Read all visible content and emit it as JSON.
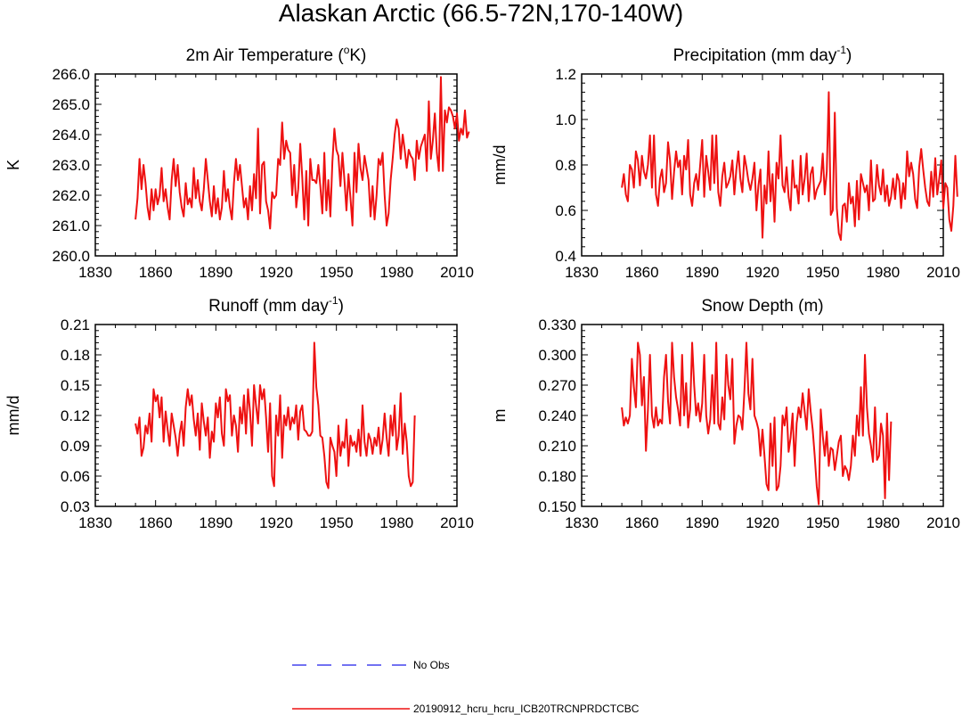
{
  "figure": {
    "title": "Alaskan Arctic (66.5-72N,170-140W)"
  },
  "legend": {
    "items": [
      {
        "label": "No Obs",
        "color": "#4444ee",
        "style": "dashed"
      },
      {
        "label": "20190912_hcru_hcru_ICB20TRCNPRDCTCBC",
        "color": "#ee1111",
        "style": "solid"
      }
    ]
  },
  "colors": {
    "series": "#ee1111",
    "axis": "#000000"
  },
  "chart_data": [
    {
      "type": "line",
      "title_main": "2m Air Temperature (",
      "title_sup": "o",
      "title_tail": "K)",
      "ylabel": "K",
      "xlim": [
        1830,
        2010
      ],
      "ylim": [
        260.0,
        266.0
      ],
      "x_ticks": [
        1830,
        1860,
        1890,
        1920,
        1950,
        1980,
        2010
      ],
      "y_ticks": [
        "260.0",
        "261.0",
        "262.0",
        "263.0",
        "264.0",
        "265.0",
        "266.0"
      ],
      "x_start": 1850,
      "series": [
        {
          "name": "20190912_hcru_hcru_ICB20TRCNPRDCTCBC",
          "values": [
            261.2,
            261.9,
            263.2,
            262.2,
            263.0,
            262.4,
            261.6,
            261.2,
            262.2,
            261.5,
            262.2,
            261.7,
            262.0,
            262.9,
            261.8,
            262.2,
            261.6,
            261.2,
            262.5,
            263.2,
            262.3,
            263.0,
            262.1,
            261.6,
            261.3,
            262.4,
            261.7,
            261.9,
            261.6,
            262.9,
            261.9,
            262.5,
            261.8,
            261.5,
            262.2,
            263.2,
            262.5,
            261.8,
            261.3,
            262.3,
            261.4,
            261.9,
            261.2,
            261.6,
            262.8,
            261.8,
            262.2,
            261.6,
            261.2,
            262.4,
            263.2,
            262.5,
            263.0,
            262.3,
            261.6,
            261.9,
            261.2,
            262.3,
            261.5,
            262.7,
            261.9,
            264.2,
            261.4,
            263.0,
            263.1,
            261.8,
            261.5,
            260.9,
            262.1,
            261.9,
            262.0,
            263.2,
            263.0,
            264.4,
            263.2,
            263.8,
            263.5,
            263.4,
            262.0,
            263.0,
            261.6,
            262.2,
            263.7,
            262.6,
            261.2,
            262.8,
            261.0,
            263.2,
            262.5,
            262.5,
            262.4,
            263.0,
            262.3,
            261.4,
            263.4,
            261.5,
            262.5,
            261.3,
            263.1,
            264.2,
            263.5,
            263.3,
            262.3,
            263.4,
            262.5,
            261.5,
            262.7,
            261.9,
            261.0,
            263.4,
            262.1,
            263.7,
            262.9,
            262.5,
            263.3,
            262.9,
            262.5,
            261.3,
            262.3,
            261.2,
            262.0,
            263.2,
            263.0,
            263.4,
            262.0,
            261.0,
            261.4,
            262.5,
            263.2,
            264.0,
            264.5,
            264.2,
            263.2,
            264.0,
            263.5,
            262.9,
            263.5,
            263.3,
            263.2,
            262.5,
            263.8,
            263.2,
            263.6,
            263.8,
            264.0,
            262.8,
            265.1,
            263.2,
            263.8,
            264.7,
            263.4,
            262.8,
            265.9,
            262.8,
            264.8,
            264.4,
            264.9,
            264.8,
            264.6,
            264.2,
            264.7,
            263.8,
            264.2,
            264.0,
            264.8,
            263.9,
            264.1
          ]
        }
      ]
    },
    {
      "type": "line",
      "title_main": "Precipitation (mm day",
      "title_sup": "-1",
      "title_tail": ")",
      "ylabel": "mm/d",
      "xlim": [
        1830,
        2010
      ],
      "ylim": [
        0.4,
        1.2
      ],
      "x_ticks": [
        1830,
        1860,
        1890,
        1920,
        1950,
        1980,
        2010
      ],
      "y_ticks": [
        "0.4",
        "0.6",
        "0.8",
        "1.0",
        "1.2"
      ],
      "x_start": 1850,
      "series": [
        {
          "name": "20190912_hcru_hcru_ICB20TRCNPRDCTCBC",
          "values": [
            0.7,
            0.76,
            0.67,
            0.64,
            0.8,
            0.78,
            0.7,
            0.86,
            0.82,
            0.71,
            0.84,
            0.77,
            0.74,
            0.8,
            0.93,
            0.7,
            0.93,
            0.67,
            0.62,
            0.74,
            0.78,
            0.68,
            0.72,
            0.9,
            0.82,
            0.65,
            0.77,
            0.86,
            0.79,
            0.82,
            0.67,
            0.84,
            0.78,
            0.91,
            0.67,
            0.62,
            0.72,
            0.76,
            0.69,
            0.8,
            0.91,
            0.66,
            0.84,
            0.77,
            0.69,
            0.93,
            0.72,
            0.93,
            0.68,
            0.62,
            0.75,
            0.81,
            0.7,
            0.72,
            0.75,
            0.82,
            0.67,
            0.78,
            0.86,
            0.74,
            0.68,
            0.84,
            0.79,
            0.73,
            0.69,
            0.74,
            0.81,
            0.6,
            0.71,
            0.78,
            0.48,
            0.71,
            0.63,
            0.86,
            0.64,
            0.76,
            0.55,
            0.81,
            0.74,
            0.93,
            0.71,
            0.68,
            0.79,
            0.66,
            0.6,
            0.82,
            0.7,
            0.71,
            0.63,
            0.84,
            0.67,
            0.74,
            0.85,
            0.64,
            0.76,
            0.79,
            0.65,
            0.69,
            0.71,
            0.73,
            0.85,
            0.67,
            0.77,
            1.12,
            0.58,
            0.6,
            1.03,
            0.61,
            0.5,
            0.47,
            0.62,
            0.63,
            0.55,
            0.72,
            0.63,
            0.66,
            0.53,
            0.73,
            0.56,
            0.76,
            0.72,
            0.68,
            0.71,
            0.6,
            0.82,
            0.64,
            0.65,
            0.8,
            0.71,
            0.67,
            0.78,
            0.64,
            0.71,
            0.62,
            0.66,
            0.74,
            0.65,
            0.76,
            0.73,
            0.61,
            0.72,
            0.65,
            0.86,
            0.75,
            0.81,
            0.76,
            0.65,
            0.61,
            0.79,
            0.87,
            0.78,
            0.7,
            0.64,
            0.62,
            0.77,
            0.66,
            0.83,
            0.67,
            0.74,
            0.82,
            0.61,
            0.72,
            0.7,
            0.56,
            0.51,
            0.62,
            0.84,
            0.66
          ]
        }
      ]
    },
    {
      "type": "line",
      "title_main": "Runoff (mm day",
      "title_sup": "-1",
      "title_tail": ")",
      "ylabel": "mm/d",
      "xlim": [
        1830,
        2010
      ],
      "ylim": [
        0.03,
        0.21
      ],
      "x_ticks": [
        1830,
        1860,
        1890,
        1920,
        1950,
        1980,
        2010
      ],
      "y_ticks": [
        "0.03",
        "0.06",
        "0.09",
        "0.12",
        "0.15",
        "0.18",
        "0.21"
      ],
      "x_start": 1850,
      "series": [
        {
          "name": "20190912_hcru_hcru_ICB20TRCNPRDCTCBC",
          "values": [
            0.112,
            0.102,
            0.118,
            0.08,
            0.088,
            0.11,
            0.102,
            0.122,
            0.094,
            0.146,
            0.134,
            0.14,
            0.118,
            0.138,
            0.094,
            0.124,
            0.106,
            0.09,
            0.122,
            0.11,
            0.098,
            0.08,
            0.102,
            0.114,
            0.09,
            0.128,
            0.146,
            0.13,
            0.14,
            0.116,
            0.1,
            0.122,
            0.086,
            0.132,
            0.114,
            0.1,
            0.118,
            0.078,
            0.104,
            0.094,
            0.132,
            0.118,
            0.138,
            0.102,
            0.09,
            0.146,
            0.134,
            0.14,
            0.1,
            0.12,
            0.11,
            0.084,
            0.128,
            0.112,
            0.14,
            0.102,
            0.146,
            0.124,
            0.09,
            0.15,
            0.13,
            0.112,
            0.15,
            0.136,
            0.146,
            0.118,
            0.084,
            0.132,
            0.06,
            0.05,
            0.12,
            0.1,
            0.14,
            0.078,
            0.12,
            0.11,
            0.128,
            0.106,
            0.118,
            0.112,
            0.13,
            0.096,
            0.124,
            0.13,
            0.106,
            0.104,
            0.1,
            0.1,
            0.104,
            0.192,
            0.148,
            0.13,
            0.1,
            0.098,
            0.08,
            0.054,
            0.048,
            0.098,
            0.09,
            0.084,
            0.06,
            0.11,
            0.08,
            0.094,
            0.088,
            0.116,
            0.07,
            0.1,
            0.09,
            0.094,
            0.084,
            0.106,
            0.08,
            0.13,
            0.094,
            0.08,
            0.102,
            0.096,
            0.082,
            0.098,
            0.09,
            0.108,
            0.082,
            0.096,
            0.122,
            0.098,
            0.08,
            0.12,
            0.1,
            0.13,
            0.086,
            0.1,
            0.142,
            0.082,
            0.112,
            0.094,
            0.06,
            0.05,
            0.054,
            0.12
          ]
        }
      ]
    },
    {
      "type": "line",
      "title_main": "Snow Depth (m)",
      "title_sup": "",
      "title_tail": "",
      "ylabel": "m",
      "xlim": [
        1830,
        2010
      ],
      "ylim": [
        0.15,
        0.33
      ],
      "x_ticks": [
        1830,
        1860,
        1890,
        1920,
        1950,
        1980,
        2010
      ],
      "y_ticks": [
        "0.150",
        "0.180",
        "0.210",
        "0.240",
        "0.270",
        "0.300",
        "0.330"
      ],
      "x_start": 1850,
      "series": [
        {
          "name": "20190912_hcru_hcru_ICB20TRCNPRDCTCBC",
          "values": [
            0.248,
            0.23,
            0.238,
            0.232,
            0.24,
            0.296,
            0.268,
            0.248,
            0.312,
            0.3,
            0.25,
            0.278,
            0.205,
            0.246,
            0.3,
            0.24,
            0.228,
            0.248,
            0.23,
            0.236,
            0.232,
            0.278,
            0.3,
            0.254,
            0.232,
            0.312,
            0.278,
            0.258,
            0.246,
            0.23,
            0.3,
            0.24,
            0.272,
            0.228,
            0.246,
            0.312,
            0.27,
            0.24,
            0.252,
            0.234,
            0.252,
            0.3,
            0.24,
            0.222,
            0.236,
            0.28,
            0.232,
            0.312,
            0.232,
            0.226,
            0.258,
            0.236,
            0.3,
            0.27,
            0.256,
            0.296,
            0.212,
            0.23,
            0.24,
            0.238,
            0.226,
            0.264,
            0.312,
            0.262,
            0.246,
            0.296,
            0.24,
            0.234,
            0.226,
            0.2,
            0.226,
            0.2,
            0.172,
            0.166,
            0.232,
            0.19,
            0.238,
            0.166,
            0.17,
            0.19,
            0.24,
            0.23,
            0.248,
            0.204,
            0.218,
            0.242,
            0.19,
            0.232,
            0.248,
            0.238,
            0.262,
            0.244,
            0.226,
            0.266,
            0.244,
            0.226,
            0.2,
            0.17,
            0.152,
            0.246,
            0.22,
            0.2,
            0.224,
            0.19,
            0.208,
            0.206,
            0.186,
            0.2,
            0.214,
            0.22,
            0.18,
            0.19,
            0.186,
            0.176,
            0.19,
            0.22,
            0.2,
            0.24,
            0.22,
            0.268,
            0.22,
            0.3,
            0.248,
            0.222,
            0.21,
            0.194,
            0.248,
            0.196,
            0.2,
            0.232,
            0.22,
            0.158,
            0.242,
            0.176,
            0.234
          ]
        }
      ]
    }
  ]
}
